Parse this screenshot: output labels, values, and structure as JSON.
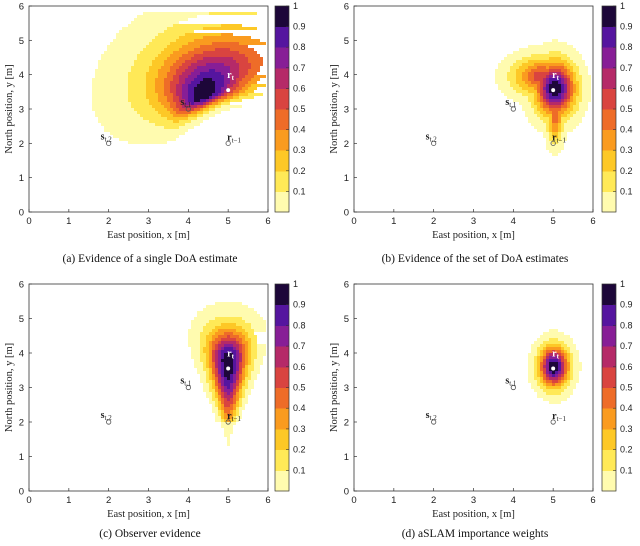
{
  "chart_data": [
    {
      "type": "heatmap",
      "panel": "a",
      "caption": "(a) Evidence of a single DoA estimate",
      "xlabel": "East position, x [m]",
      "ylabel": "North position, y [m]",
      "xlim": [
        0,
        6
      ],
      "ylim": [
        0,
        6
      ],
      "xticks": [
        "0",
        "1",
        "2",
        "3",
        "4",
        "5",
        "6"
      ],
      "yticks": [
        "0",
        "1",
        "2",
        "3",
        "4",
        "5",
        "6"
      ],
      "colorbar": {
        "min": 0,
        "max": 1,
        "ticks": [
          "0.1",
          "0.2",
          "0.3",
          "0.4",
          "0.5",
          "0.6",
          "0.7",
          "0.8",
          "0.9",
          "1"
        ]
      },
      "contour_levels": [
        0.1,
        0.2,
        0.3,
        0.4,
        0.5,
        0.6,
        0.7,
        0.8,
        0.9
      ],
      "points": [
        {
          "name": "rt",
          "label": "r",
          "sub": "t",
          "x": 5.0,
          "y": 3.55
        },
        {
          "name": "rt-1",
          "label": "r",
          "sub": "t−1",
          "x": 5.0,
          "y": 2.0
        },
        {
          "name": "st1",
          "label": "s",
          "sub": "t,1",
          "x": 4.0,
          "y": 3.0
        },
        {
          "name": "st2",
          "label": "s",
          "sub": "t,2",
          "x": 2.0,
          "y": 2.0
        }
      ]
    },
    {
      "type": "heatmap",
      "panel": "b",
      "caption": "(b) Evidence of the set of DoA estimates",
      "xlabel": "East position, x [m]",
      "ylabel": "North position, y [m]",
      "xlim": [
        0,
        6
      ],
      "ylim": [
        0,
        6
      ],
      "xticks": [
        "0",
        "1",
        "2",
        "3",
        "4",
        "5",
        "6"
      ],
      "yticks": [
        "0",
        "1",
        "2",
        "3",
        "4",
        "5",
        "6"
      ],
      "colorbar": {
        "min": 0,
        "max": 1,
        "ticks": [
          "0.1",
          "0.2",
          "0.3",
          "0.4",
          "0.5",
          "0.6",
          "0.7",
          "0.8",
          "0.9",
          "1"
        ]
      },
      "contour_levels": [
        0.1,
        0.2,
        0.3,
        0.4,
        0.5,
        0.6,
        0.7,
        0.8,
        0.9
      ],
      "points": [
        {
          "name": "rt",
          "label": "r",
          "sub": "t",
          "x": 5.0,
          "y": 3.55
        },
        {
          "name": "rt-1",
          "label": "r",
          "sub": "t−1",
          "x": 5.0,
          "y": 2.0
        },
        {
          "name": "st1",
          "label": "s",
          "sub": "t,1",
          "x": 4.0,
          "y": 3.0
        },
        {
          "name": "st2",
          "label": "s",
          "sub": "t,2",
          "x": 2.0,
          "y": 2.0
        }
      ]
    },
    {
      "type": "heatmap",
      "panel": "c",
      "caption": "(c) Observer evidence",
      "xlabel": "East position, x [m]",
      "ylabel": "North position, y [m]",
      "xlim": [
        0,
        6
      ],
      "ylim": [
        0,
        6
      ],
      "xticks": [
        "0",
        "1",
        "2",
        "3",
        "4",
        "5",
        "6"
      ],
      "yticks": [
        "0",
        "1",
        "2",
        "3",
        "4",
        "5",
        "6"
      ],
      "colorbar": {
        "min": 0,
        "max": 1,
        "ticks": [
          "0.1",
          "0.2",
          "0.3",
          "0.4",
          "0.5",
          "0.6",
          "0.7",
          "0.8",
          "0.9",
          "1"
        ]
      },
      "contour_levels": [
        0.1,
        0.2,
        0.3,
        0.4,
        0.5,
        0.6,
        0.7,
        0.8,
        0.9
      ],
      "points": [
        {
          "name": "rt",
          "label": "r",
          "sub": "t",
          "x": 5.0,
          "y": 3.55
        },
        {
          "name": "rt-1",
          "label": "r",
          "sub": "t−1",
          "x": 5.0,
          "y": 2.0
        },
        {
          "name": "st1",
          "label": "s",
          "sub": "t,1",
          "x": 4.0,
          "y": 3.0
        },
        {
          "name": "st2",
          "label": "s",
          "sub": "t,2",
          "x": 2.0,
          "y": 2.0
        }
      ]
    },
    {
      "type": "heatmap",
      "panel": "d",
      "caption": "(d) aSLAM importance weights",
      "xlabel": "East position, x [m]",
      "ylabel": "North position, y [m]",
      "xlim": [
        0,
        6
      ],
      "ylim": [
        0,
        6
      ],
      "xticks": [
        "0",
        "1",
        "2",
        "3",
        "4",
        "5",
        "6"
      ],
      "yticks": [
        "0",
        "1",
        "2",
        "3",
        "4",
        "5",
        "6"
      ],
      "colorbar": {
        "min": 0,
        "max": 1,
        "ticks": [
          "0.1",
          "0.2",
          "0.3",
          "0.4",
          "0.5",
          "0.6",
          "0.7",
          "0.8",
          "0.9",
          "1"
        ]
      },
      "contour_levels": [
        0.1,
        0.2,
        0.3,
        0.4,
        0.5,
        0.6,
        0.7,
        0.8,
        0.9
      ],
      "points": [
        {
          "name": "rt",
          "label": "r",
          "sub": "t",
          "x": 5.0,
          "y": 3.55
        },
        {
          "name": "rt-1",
          "label": "r",
          "sub": "t−1",
          "x": 5.0,
          "y": 2.0
        },
        {
          "name": "st1",
          "label": "s",
          "sub": "t,1",
          "x": 4.0,
          "y": 3.0
        },
        {
          "name": "st2",
          "label": "s",
          "sub": "t,2",
          "x": 2.0,
          "y": 2.0
        }
      ]
    }
  ]
}
